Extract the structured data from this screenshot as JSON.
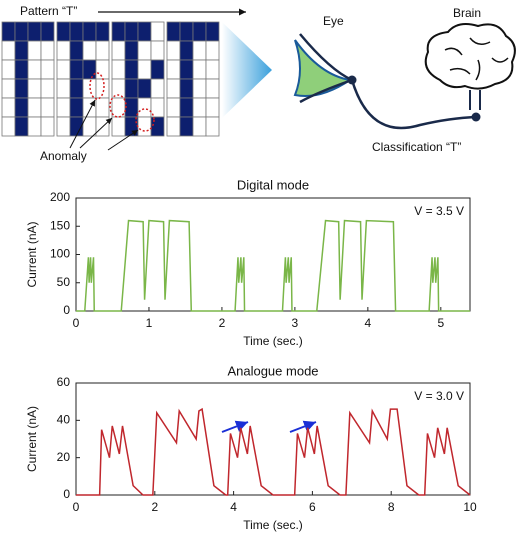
{
  "diagram": {
    "pattern_label": "Pattern “T”",
    "eye_label": "Eye",
    "brain_label": "Brain",
    "anomaly_label": "Anomaly",
    "classification_label": "Classification “T”"
  },
  "chart_data": [
    {
      "type": "line",
      "title": "Digital mode",
      "annotation": "V = 3.5 V",
      "x_label": "Time (sec.)",
      "y_label": "Current (nA)",
      "color": "#7ab648",
      "xlim": [
        0,
        5.4
      ],
      "xticks": [
        0,
        1,
        2,
        3,
        4,
        5
      ],
      "ylim": [
        0,
        200
      ],
      "yticks": [
        0,
        50,
        100,
        150,
        200
      ],
      "x": [
        0,
        0.12,
        0.17,
        0.18,
        0.2,
        0.21,
        0.24,
        0.25,
        0.62,
        0.72,
        0.92,
        0.94,
        1.0,
        1.2,
        1.22,
        1.28,
        1.55,
        1.58,
        2.18,
        2.22,
        2.23,
        2.26,
        2.27,
        2.3,
        2.31,
        2.83,
        2.87,
        2.88,
        2.91,
        2.92,
        2.95,
        2.96,
        3.3,
        3.42,
        3.6,
        3.62,
        3.68,
        3.9,
        3.92,
        3.98,
        4.35,
        4.38,
        4.84,
        4.88,
        4.89,
        4.92,
        4.93,
        4.96,
        4.97,
        5.4
      ],
      "values": [
        0,
        0,
        95,
        50,
        95,
        50,
        95,
        0,
        0,
        160,
        158,
        20,
        160,
        158,
        20,
        160,
        158,
        0,
        0,
        95,
        50,
        95,
        50,
        95,
        0,
        0,
        95,
        50,
        95,
        50,
        95,
        0,
        0,
        160,
        158,
        20,
        160,
        158,
        20,
        160,
        158,
        0,
        0,
        95,
        50,
        95,
        50,
        95,
        0,
        0
      ]
    },
    {
      "type": "line",
      "title": "Analogue mode",
      "annotation": "V = 3.0 V",
      "x_label": "Time (sec.)",
      "y_label": "Current (nA)",
      "color": "#c0272d",
      "xlim": [
        0,
        10
      ],
      "xticks": [
        0,
        2,
        4,
        6,
        8,
        10
      ],
      "ylim": [
        0,
        60
      ],
      "yticks": [
        0,
        20,
        40,
        60
      ],
      "x": [
        0,
        0.6,
        0.65,
        0.85,
        0.92,
        1.1,
        1.18,
        1.45,
        1.7,
        1.95,
        2.05,
        2.55,
        2.62,
        3.05,
        3.12,
        3.2,
        3.5,
        3.8,
        3.85,
        3.92,
        4.1,
        4.18,
        4.35,
        4.42,
        4.7,
        5.0,
        5.55,
        5.62,
        5.8,
        5.88,
        6.05,
        6.12,
        6.4,
        6.7,
        6.85,
        6.95,
        7.45,
        7.52,
        7.9,
        7.98,
        8.15,
        8.4,
        8.7,
        8.85,
        8.92,
        9.1,
        9.18,
        9.35,
        9.42,
        9.7,
        10
      ],
      "values": [
        0,
        0,
        35,
        20,
        37,
        22,
        37,
        5,
        0,
        0,
        44,
        28,
        45,
        30,
        45,
        46,
        5,
        0,
        0,
        33,
        20,
        36,
        22,
        37,
        5,
        0,
        0,
        33,
        20,
        36,
        22,
        37,
        5,
        0,
        0,
        44,
        28,
        45,
        30,
        46,
        46,
        5,
        0,
        0,
        33,
        20,
        36,
        22,
        36,
        5,
        0
      ]
    }
  ]
}
